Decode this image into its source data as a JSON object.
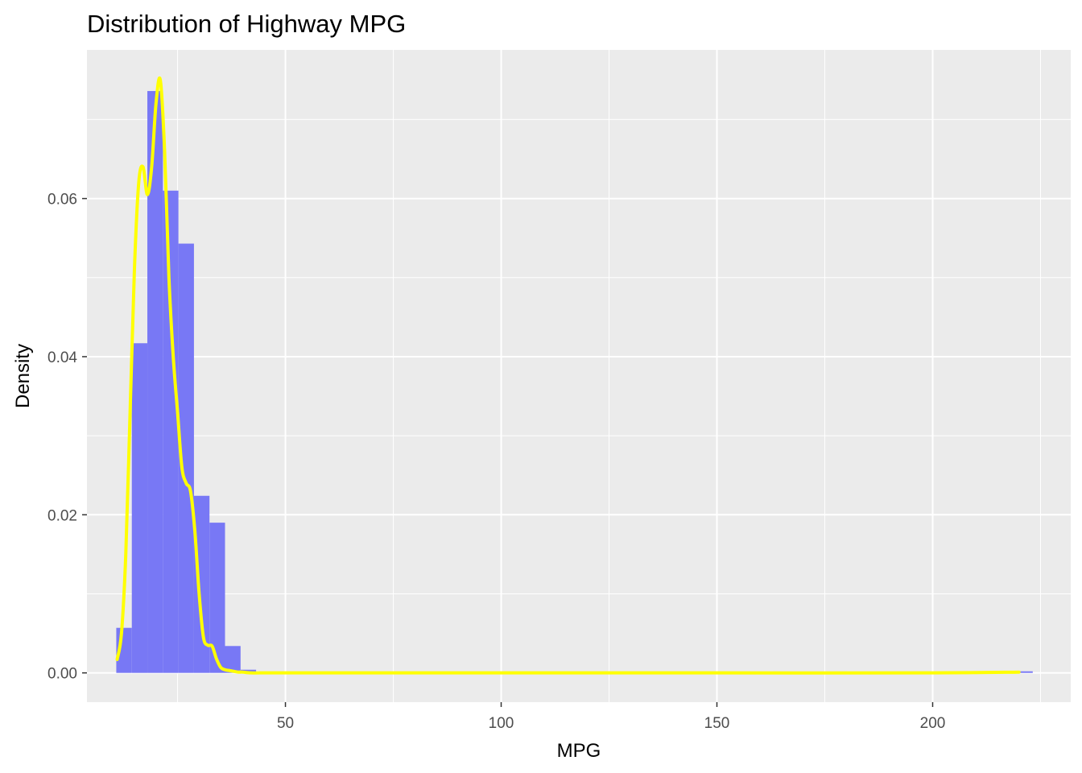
{
  "chart_data": {
    "type": "bar",
    "title": "Distribution of Highway MPG",
    "xlabel": "MPG",
    "ylabel": "Density",
    "xlim": [
      4,
      232
    ],
    "ylim": [
      -0.0037,
      0.0788
    ],
    "x_ticks": [
      50,
      100,
      150,
      200
    ],
    "x_tick_labels": [
      "50",
      "100",
      "150",
      "200"
    ],
    "y_ticks": [
      0,
      0.02,
      0.04,
      0.06
    ],
    "y_tick_labels": [
      "0.00",
      "0.02",
      "0.04",
      "0.06"
    ],
    "grid": true,
    "histogram": {
      "name": "",
      "bin_width": 3.6,
      "bins": [
        {
          "x0": 10.8,
          "x1": 14.4,
          "density": 0.0057
        },
        {
          "x0": 14.4,
          "x1": 18.0,
          "density": 0.0417
        },
        {
          "x0": 18.0,
          "x1": 21.6,
          "density": 0.0736
        },
        {
          "x0": 21.6,
          "x1": 25.2,
          "density": 0.061
        },
        {
          "x0": 25.2,
          "x1": 28.8,
          "density": 0.0543
        },
        {
          "x0": 28.8,
          "x1": 32.4,
          "density": 0.0224
        },
        {
          "x0": 32.4,
          "x1": 36.0,
          "density": 0.019
        },
        {
          "x0": 36.0,
          "x1": 39.6,
          "density": 0.0034
        },
        {
          "x0": 39.6,
          "x1": 43.2,
          "density": 0.0004
        },
        {
          "x0": 219.6,
          "x1": 223.2,
          "density": 0.0002
        }
      ]
    },
    "density_curve": {
      "name": "",
      "x": [
        11,
        12,
        13,
        14,
        15,
        16,
        17,
        18,
        19,
        20,
        21,
        22,
        23,
        24,
        25,
        26,
        27,
        28,
        29,
        30,
        31,
        32,
        33,
        34,
        35,
        36,
        37,
        38,
        39,
        40,
        42,
        44,
        50,
        100,
        150,
        200,
        220
      ],
      "y": [
        0.0017,
        0.005,
        0.015,
        0.033,
        0.051,
        0.062,
        0.064,
        0.0605,
        0.064,
        0.072,
        0.075,
        0.066,
        0.05,
        0.04,
        0.033,
        0.026,
        0.024,
        0.023,
        0.018,
        0.01,
        0.0045,
        0.0035,
        0.0034,
        0.0018,
        0.0007,
        0.0004,
        0.0003,
        0.0002,
        0.0001,
        0.0001,
        0.0,
        0.0,
        0.0,
        0.0,
        0.0,
        0.0,
        0.0001
      ]
    },
    "colors": {
      "histogram_fill": "#7878f5",
      "curve": "#ffff00",
      "panel_background": "#ebebeb",
      "grid": "#ffffff",
      "tick_text": "#4d4d4d",
      "title_text": "#000000"
    }
  }
}
